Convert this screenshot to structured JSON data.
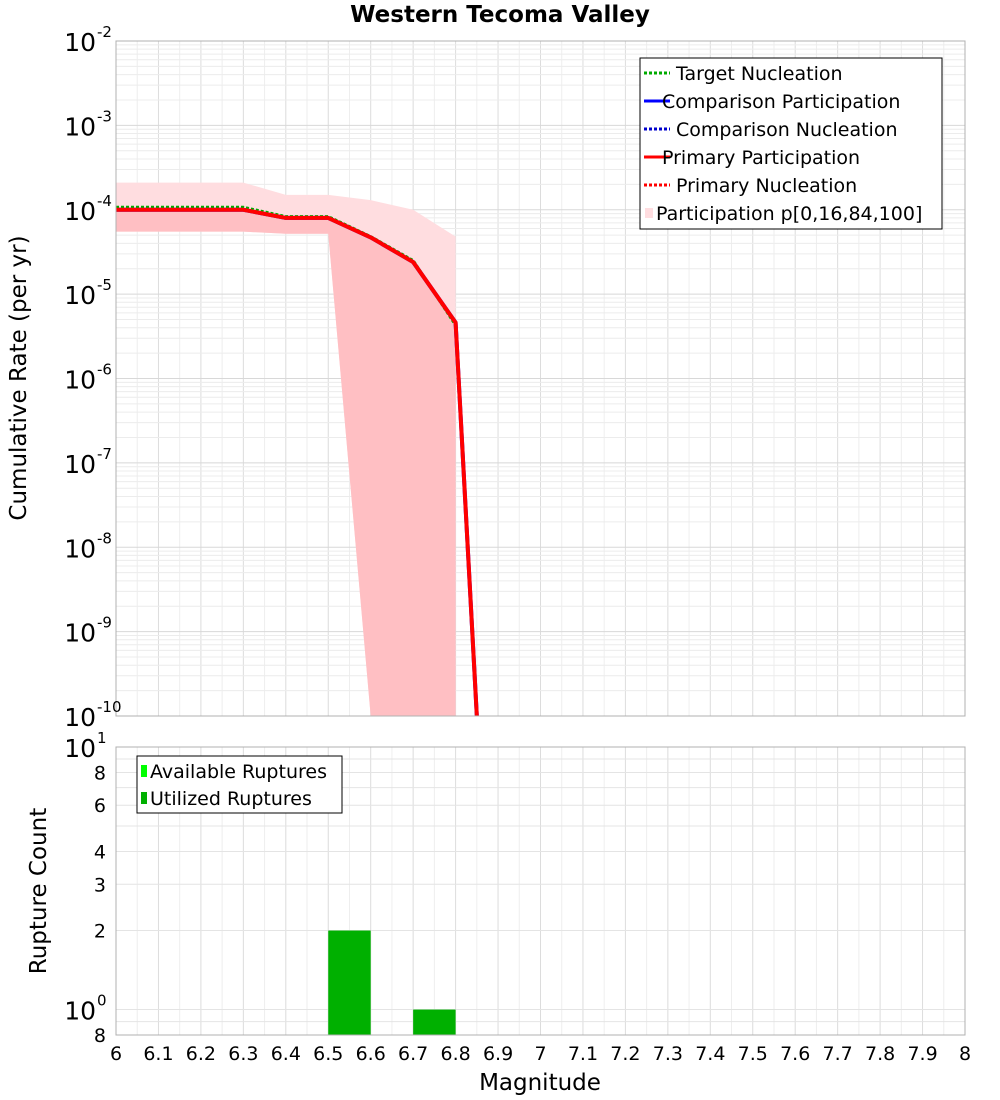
{
  "chart_data": [
    {
      "type": "line",
      "title": "Western Tecoma Valley",
      "xlabel": "",
      "ylabel": "Cumulative Rate (per yr)",
      "xlim": [
        6,
        8
      ],
      "ylim": [
        1e-10,
        0.01
      ],
      "yscale": "log",
      "grid": true,
      "legend_position": "top-right",
      "y_ticks": [
        {
          "base": "10",
          "exp": "-10",
          "value": 1e-10
        },
        {
          "base": "10",
          "exp": "-9",
          "value": 1e-09
        },
        {
          "base": "10",
          "exp": "-8",
          "value": 1e-08
        },
        {
          "base": "10",
          "exp": "-7",
          "value": 1e-07
        },
        {
          "base": "10",
          "exp": "-6",
          "value": 1e-06
        },
        {
          "base": "10",
          "exp": "-5",
          "value": 1e-05
        },
        {
          "base": "10",
          "exp": "-4",
          "value": 0.0001
        },
        {
          "base": "10",
          "exp": "-3",
          "value": 0.001
        },
        {
          "base": "10",
          "exp": "-2",
          "value": 0.01
        }
      ],
      "bands": [
        {
          "name": "Participation p[0,16,84,100]",
          "color": "#ffdde0",
          "x": [
            6.0,
            6.3,
            6.4,
            6.5,
            6.6,
            6.7,
            6.8
          ],
          "lower": [
            5.5e-05,
            5.5e-05,
            5.2e-05,
            5.2e-05,
            1e-10,
            1e-10,
            1e-10
          ],
          "upper": [
            0.00021,
            0.00021,
            0.00015,
            0.00015,
            0.00013,
            0.0001,
            4.8e-05
          ]
        },
        {
          "name": "",
          "color": "#ffbfc3",
          "x": [
            6.0,
            6.3,
            6.4,
            6.5,
            6.6,
            6.7,
            6.8
          ],
          "lower": [
            5.5e-05,
            5.5e-05,
            5.2e-05,
            5.2e-05,
            1e-10,
            1e-10,
            1e-10
          ],
          "upper": [
            0.000105,
            0.000105,
            8.2e-05,
            8.2e-05,
            4.7e-05,
            2.4e-05,
            4.4e-06
          ]
        }
      ],
      "series": [
        {
          "name": "Target Nucleation",
          "color": "#00aa00",
          "dash": "dotted",
          "x": [
            6.0,
            6.3,
            6.4,
            6.5,
            6.6,
            6.7,
            6.8,
            6.85
          ],
          "y": [
            0.000107,
            0.000107,
            8.3e-05,
            8.3e-05,
            4.8e-05,
            2.5e-05,
            4.3e-06,
            1e-10
          ]
        },
        {
          "name": "Comparison Participation",
          "color": "#0000ff",
          "dash": "solid",
          "x": [
            6.0,
            6.3,
            6.4,
            6.5,
            6.6,
            6.7,
            6.8,
            6.85
          ],
          "y": [
            0.0001,
            0.0001,
            8e-05,
            8e-05,
            4.7e-05,
            2.4e-05,
            4.6e-06,
            1e-10
          ]
        },
        {
          "name": "Comparison Nucleation",
          "color": "#0000cc",
          "dash": "dotted",
          "x": [
            6.0,
            6.3,
            6.4,
            6.5,
            6.6,
            6.7,
            6.8,
            6.85
          ],
          "y": [
            0.0001,
            0.0001,
            8e-05,
            8e-05,
            4.7e-05,
            2.4e-05,
            4.6e-06,
            1e-10
          ]
        },
        {
          "name": "Primary Participation",
          "color": "#ff0000",
          "dash": "solid",
          "x": [
            6.0,
            6.3,
            6.4,
            6.5,
            6.6,
            6.7,
            6.8,
            6.85
          ],
          "y": [
            0.0001,
            0.0001,
            8e-05,
            8e-05,
            4.7e-05,
            2.4e-05,
            4.6e-06,
            1e-10
          ]
        },
        {
          "name": "Primary Nucleation",
          "color": "#ff0000",
          "dash": "dotted",
          "x": [
            6.0,
            6.3,
            6.4,
            6.5,
            6.6,
            6.7,
            6.8,
            6.85
          ],
          "y": [
            0.0001,
            0.0001,
            8e-05,
            8e-05,
            4.7e-05,
            2.4e-05,
            4.6e-06,
            1e-10
          ]
        }
      ]
    },
    {
      "type": "bar",
      "title": "",
      "xlabel": "Magnitude",
      "ylabel": "Rupture Count",
      "xlim": [
        6,
        8
      ],
      "ylim": [
        0.8,
        10
      ],
      "yscale": "log",
      "grid": true,
      "legend_position": "top-left",
      "x_ticks": [
        "6",
        "6.1",
        "6.2",
        "6.3",
        "6.4",
        "6.5",
        "6.6",
        "6.7",
        "6.8",
        "6.9",
        "7",
        "7.1",
        "7.2",
        "7.3",
        "7.4",
        "7.5",
        "7.6",
        "7.7",
        "7.8",
        "7.9",
        "8"
      ],
      "y_ticks": [
        {
          "label": "8",
          "value": 0.8,
          "exp": ""
        },
        {
          "label": "10",
          "value": 1,
          "exp": "0"
        },
        {
          "label": "2",
          "value": 2,
          "exp": ""
        },
        {
          "label": "3",
          "value": 3,
          "exp": ""
        },
        {
          "label": "4",
          "value": 4,
          "exp": ""
        },
        {
          "label": "6",
          "value": 6,
          "exp": ""
        },
        {
          "label": "8",
          "value": 8,
          "exp": ""
        },
        {
          "label": "10",
          "value": 10,
          "exp": "1"
        }
      ],
      "series": [
        {
          "name": "Available Ruptures",
          "color": "#00ff00",
          "bars": []
        },
        {
          "name": "Utilized Ruptures",
          "color": "#00b000",
          "bars": [
            {
              "x0": 6.5,
              "x1": 6.6,
              "value": 2
            },
            {
              "x0": 6.7,
              "x1": 6.8,
              "value": 1
            }
          ]
        }
      ]
    }
  ]
}
